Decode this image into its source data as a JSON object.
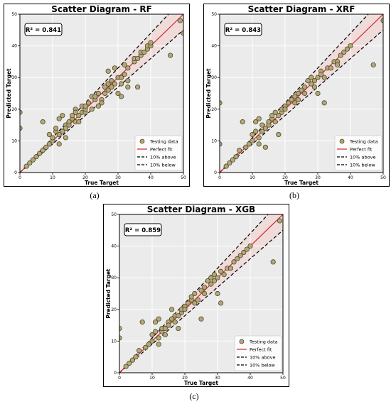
{
  "legend_labels": {
    "testing": "Testing data",
    "perfect": "Perfect fit",
    "above": "10% above",
    "below": "10% below"
  },
  "colors": {
    "point_fill": "#b5a678",
    "point_edge": "#4a4a2a",
    "perfect_line": "#d62728",
    "band_lines": "#000000",
    "plot_bg": "#ebebeb",
    "band_fill": "#f2d4d4"
  },
  "chart_data": [
    {
      "type": "scatter",
      "title": "Scatter Diagram - RF",
      "r2_label": "R² = 0.841",
      "xlabel": "True Target",
      "ylabel": "Predicted Target",
      "xlim": [
        0,
        50
      ],
      "ylim": [
        0,
        50
      ],
      "xticks": [
        "0",
        "10",
        "20",
        "30",
        "40",
        "50"
      ],
      "yticks": [
        "0",
        "10",
        "20",
        "30",
        "40",
        "50"
      ],
      "grid": true,
      "legend_position": "lower-right",
      "caption": "(a)",
      "points": [
        [
          0,
          14
        ],
        [
          0,
          19
        ],
        [
          2,
          2
        ],
        [
          3,
          3
        ],
        [
          4,
          4
        ],
        [
          5,
          5
        ],
        [
          6,
          6
        ],
        [
          7,
          7
        ],
        [
          7,
          16
        ],
        [
          8,
          8
        ],
        [
          9,
          9
        ],
        [
          9,
          12
        ],
        [
          10,
          10
        ],
        [
          10,
          11
        ],
        [
          11,
          13
        ],
        [
          11,
          14
        ],
        [
          12,
          9
        ],
        [
          12,
          12
        ],
        [
          12,
          17
        ],
        [
          13,
          13
        ],
        [
          13,
          18
        ],
        [
          14,
          15
        ],
        [
          14,
          11
        ],
        [
          14,
          14
        ],
        [
          15,
          15
        ],
        [
          15,
          16
        ],
        [
          16,
          17
        ],
        [
          16,
          18
        ],
        [
          17,
          16
        ],
        [
          17,
          20
        ],
        [
          17,
          19
        ],
        [
          18,
          16
        ],
        [
          18,
          18
        ],
        [
          19,
          19
        ],
        [
          19,
          21
        ],
        [
          20,
          19
        ],
        [
          20,
          20
        ],
        [
          20,
          21
        ],
        [
          21,
          22
        ],
        [
          21,
          22
        ],
        [
          22,
          24
        ],
        [
          22,
          20
        ],
        [
          23,
          23
        ],
        [
          23,
          24
        ],
        [
          24,
          25
        ],
        [
          24,
          21
        ],
        [
          25,
          23
        ],
        [
          25,
          22
        ],
        [
          26,
          25
        ],
        [
          26,
          27
        ],
        [
          27,
          26
        ],
        [
          27,
          28
        ],
        [
          27,
          32
        ],
        [
          28,
          27
        ],
        [
          28,
          29
        ],
        [
          29,
          33
        ],
        [
          29,
          28
        ],
        [
          30,
          25
        ],
        [
          30,
          30
        ],
        [
          31,
          28
        ],
        [
          31,
          24
        ],
        [
          31,
          30
        ],
        [
          32,
          31
        ],
        [
          32,
          34
        ],
        [
          33,
          33
        ],
        [
          33,
          27
        ],
        [
          33,
          29
        ],
        [
          35,
          35
        ],
        [
          35,
          36
        ],
        [
          36,
          36
        ],
        [
          36,
          27
        ],
        [
          37,
          37
        ],
        [
          37,
          38
        ],
        [
          38,
          38
        ],
        [
          39,
          39
        ],
        [
          39,
          40
        ],
        [
          40,
          40
        ],
        [
          40,
          41
        ],
        [
          46,
          37
        ],
        [
          49,
          48
        ],
        [
          50,
          44
        ]
      ]
    },
    {
      "type": "scatter",
      "title": "Scatter Diagram - XRF",
      "r2_label": "R² = 0.843",
      "xlabel": "True Target",
      "ylabel": "Predicted Target",
      "xlim": [
        0,
        50
      ],
      "ylim": [
        0,
        50
      ],
      "xticks": [
        "0",
        "10",
        "20",
        "30",
        "40",
        "50"
      ],
      "yticks": [
        "0",
        "10",
        "20",
        "30",
        "40",
        "50"
      ],
      "grid": true,
      "legend_position": "lower-right",
      "caption": "(b)",
      "points": [
        [
          0,
          9
        ],
        [
          0,
          22
        ],
        [
          2,
          2
        ],
        [
          3,
          3
        ],
        [
          4,
          4
        ],
        [
          5,
          5
        ],
        [
          6,
          7
        ],
        [
          7,
          16
        ],
        [
          8,
          8
        ],
        [
          9,
          9
        ],
        [
          10,
          10
        ],
        [
          10,
          12
        ],
        [
          11,
          13
        ],
        [
          11,
          16
        ],
        [
          12,
          9
        ],
        [
          12,
          11
        ],
        [
          12,
          17
        ],
        [
          13,
          13
        ],
        [
          13,
          15
        ],
        [
          14,
          8
        ],
        [
          14,
          14
        ],
        [
          15,
          15
        ],
        [
          15,
          16
        ],
        [
          16,
          17
        ],
        [
          16,
          18
        ],
        [
          17,
          16
        ],
        [
          17,
          19
        ],
        [
          18,
          12
        ],
        [
          18,
          18
        ],
        [
          19,
          19
        ],
        [
          19,
          20
        ],
        [
          20,
          21
        ],
        [
          20,
          20
        ],
        [
          21,
          22
        ],
        [
          22,
          23
        ],
        [
          23,
          22
        ],
        [
          23,
          24
        ],
        [
          24,
          25
        ],
        [
          24,
          23
        ],
        [
          25,
          26
        ],
        [
          26,
          25
        ],
        [
          26,
          27
        ],
        [
          27,
          29
        ],
        [
          28,
          28
        ],
        [
          28,
          30
        ],
        [
          29,
          29
        ],
        [
          29,
          27
        ],
        [
          30,
          30
        ],
        [
          30,
          25
        ],
        [
          31,
          32
        ],
        [
          31,
          31
        ],
        [
          32,
          22
        ],
        [
          32,
          30
        ],
        [
          33,
          33
        ],
        [
          34,
          33
        ],
        [
          35,
          35
        ],
        [
          36,
          35
        ],
        [
          36,
          34
        ],
        [
          37,
          37
        ],
        [
          38,
          38
        ],
        [
          39,
          39
        ],
        [
          40,
          40
        ],
        [
          47,
          34
        ],
        [
          50,
          48
        ]
      ]
    },
    {
      "type": "scatter",
      "title": "Scatter Diagram - XGB",
      "r2_label": "R² = 0.859",
      "xlabel": "True Target",
      "ylabel": "Predicted Target",
      "xlim": [
        0,
        50
      ],
      "ylim": [
        0,
        50
      ],
      "xticks": [
        "0",
        "10",
        "20",
        "30",
        "40",
        "50"
      ],
      "yticks": [
        "0",
        "10",
        "20",
        "30",
        "40",
        "50"
      ],
      "grid": true,
      "legend_position": "lower-right",
      "caption": "(c)",
      "points": [
        [
          0,
          11
        ],
        [
          0,
          14
        ],
        [
          2,
          2
        ],
        [
          3,
          3
        ],
        [
          4,
          4
        ],
        [
          5,
          5
        ],
        [
          6,
          7
        ],
        [
          7,
          16
        ],
        [
          8,
          8
        ],
        [
          9,
          9
        ],
        [
          10,
          10
        ],
        [
          10,
          12
        ],
        [
          11,
          13
        ],
        [
          11,
          16
        ],
        [
          12,
          9
        ],
        [
          12,
          11
        ],
        [
          12,
          17
        ],
        [
          13,
          13
        ],
        [
          13,
          14
        ],
        [
          14,
          12
        ],
        [
          14,
          14
        ],
        [
          15,
          16
        ],
        [
          15,
          15
        ],
        [
          16,
          17
        ],
        [
          16,
          20
        ],
        [
          17,
          16
        ],
        [
          17,
          18
        ],
        [
          18,
          14
        ],
        [
          18,
          18
        ],
        [
          19,
          19
        ],
        [
          19,
          20
        ],
        [
          20,
          21
        ],
        [
          20,
          20
        ],
        [
          21,
          22
        ],
        [
          22,
          23
        ],
        [
          22,
          24
        ],
        [
          23,
          22
        ],
        [
          23,
          25
        ],
        [
          24,
          23
        ],
        [
          25,
          26
        ],
        [
          25,
          17
        ],
        [
          26,
          25
        ],
        [
          26,
          27
        ],
        [
          27,
          29
        ],
        [
          28,
          28
        ],
        [
          28,
          30
        ],
        [
          29,
          29
        ],
        [
          29,
          31
        ],
        [
          30,
          30
        ],
        [
          30,
          25
        ],
        [
          31,
          22
        ],
        [
          31,
          32
        ],
        [
          32,
          31
        ],
        [
          33,
          33
        ],
        [
          34,
          33
        ],
        [
          35,
          35
        ],
        [
          36,
          36
        ],
        [
          37,
          37
        ],
        [
          38,
          38
        ],
        [
          39,
          39
        ],
        [
          40,
          40
        ],
        [
          47,
          35
        ],
        [
          49,
          48
        ]
      ]
    }
  ]
}
